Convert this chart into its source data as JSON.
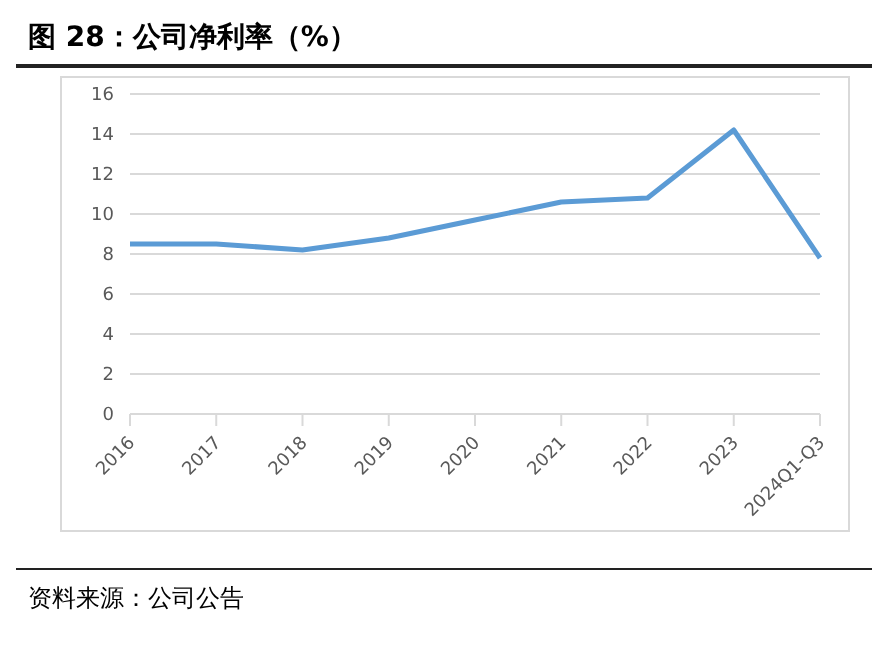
{
  "chart_data": {
    "type": "line",
    "title": "图 28：公司净利率（%）",
    "annotations": [
      "资料来源：公司公告"
    ],
    "categories": [
      "2016",
      "2017",
      "2018",
      "2019",
      "2020",
      "2021",
      "2022",
      "2023",
      "2024Q1-Q3"
    ],
    "series": [
      {
        "color": "#5b9bd5",
        "values": [
          8.5,
          8.5,
          8.2,
          8.8,
          9.7,
          10.6,
          10.8,
          14.2,
          7.8
        ]
      }
    ],
    "ylim": [
      0,
      16
    ],
    "yticks": [
      0,
      2,
      4,
      6,
      8,
      10,
      12,
      14,
      16
    ],
    "grid": "y",
    "legend": false,
    "marker": "none",
    "line_style": "solid"
  }
}
